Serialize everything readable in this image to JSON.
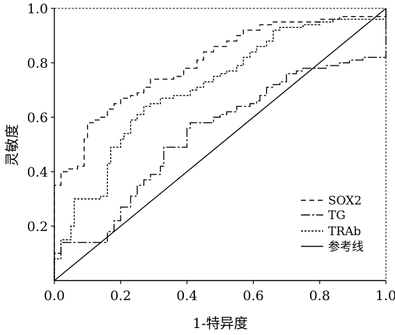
{
  "chart_data": {
    "type": "line",
    "title": "",
    "xlabel": "1-特异度",
    "ylabel": "灵敏度",
    "xlim": [
      0,
      1
    ],
    "ylim": [
      0,
      1
    ],
    "x_ticks": [
      "0.0",
      "0.2",
      "0.4",
      "0.6",
      "0.8",
      "1.0"
    ],
    "y_ticks": [
      "0.2",
      "0.4",
      "0.6",
      "0.8",
      "1.0"
    ],
    "grid": false,
    "legend_position": "bottom-right",
    "series": [
      {
        "name": "SOX2",
        "dash": "long-dash",
        "points": [
          [
            0,
            0
          ],
          [
            0,
            0.35
          ],
          [
            0.02,
            0.35
          ],
          [
            0.02,
            0.4
          ],
          [
            0.04,
            0.4
          ],
          [
            0.04,
            0.41
          ],
          [
            0.07,
            0.41
          ],
          [
            0.07,
            0.42
          ],
          [
            0.09,
            0.42
          ],
          [
            0.09,
            0.52
          ],
          [
            0.1,
            0.52
          ],
          [
            0.1,
            0.58
          ],
          [
            0.12,
            0.58
          ],
          [
            0.12,
            0.59
          ],
          [
            0.14,
            0.59
          ],
          [
            0.14,
            0.6
          ],
          [
            0.16,
            0.6
          ],
          [
            0.16,
            0.63
          ],
          [
            0.18,
            0.63
          ],
          [
            0.18,
            0.65
          ],
          [
            0.2,
            0.65
          ],
          [
            0.2,
            0.67
          ],
          [
            0.23,
            0.67
          ],
          [
            0.23,
            0.68
          ],
          [
            0.25,
            0.68
          ],
          [
            0.25,
            0.69
          ],
          [
            0.27,
            0.69
          ],
          [
            0.27,
            0.71
          ],
          [
            0.29,
            0.71
          ],
          [
            0.29,
            0.74
          ],
          [
            0.36,
            0.74
          ],
          [
            0.36,
            0.75
          ],
          [
            0.39,
            0.75
          ],
          [
            0.39,
            0.78
          ],
          [
            0.43,
            0.78
          ],
          [
            0.43,
            0.81
          ],
          [
            0.45,
            0.81
          ],
          [
            0.45,
            0.84
          ],
          [
            0.48,
            0.84
          ],
          [
            0.48,
            0.86
          ],
          [
            0.52,
            0.86
          ],
          [
            0.52,
            0.88
          ],
          [
            0.55,
            0.88
          ],
          [
            0.55,
            0.9
          ],
          [
            0.57,
            0.9
          ],
          [
            0.57,
            0.92
          ],
          [
            0.62,
            0.92
          ],
          [
            0.62,
            0.94
          ],
          [
            0.66,
            0.94
          ],
          [
            0.66,
            0.95
          ],
          [
            0.8,
            0.95
          ],
          [
            0.8,
            0.96
          ],
          [
            0.86,
            0.96
          ],
          [
            0.86,
            0.97
          ],
          [
            1,
            0.97
          ],
          [
            1,
            1
          ]
        ]
      },
      {
        "name": "TG",
        "dash": "dash-dot",
        "points": [
          [
            0,
            0
          ],
          [
            0,
            0.1
          ],
          [
            0.02,
            0.1
          ],
          [
            0.02,
            0.14
          ],
          [
            0.16,
            0.14
          ],
          [
            0.16,
            0.18
          ],
          [
            0.18,
            0.18
          ],
          [
            0.18,
            0.22
          ],
          [
            0.2,
            0.22
          ],
          [
            0.2,
            0.27
          ],
          [
            0.23,
            0.27
          ],
          [
            0.23,
            0.31
          ],
          [
            0.25,
            0.31
          ],
          [
            0.25,
            0.35
          ],
          [
            0.27,
            0.35
          ],
          [
            0.27,
            0.37
          ],
          [
            0.29,
            0.37
          ],
          [
            0.29,
            0.39
          ],
          [
            0.32,
            0.39
          ],
          [
            0.32,
            0.42
          ],
          [
            0.33,
            0.42
          ],
          [
            0.33,
            0.49
          ],
          [
            0.4,
            0.49
          ],
          [
            0.4,
            0.56
          ],
          [
            0.41,
            0.56
          ],
          [
            0.41,
            0.58
          ],
          [
            0.48,
            0.58
          ],
          [
            0.48,
            0.6
          ],
          [
            0.5,
            0.6
          ],
          [
            0.5,
            0.61
          ],
          [
            0.52,
            0.61
          ],
          [
            0.52,
            0.62
          ],
          [
            0.55,
            0.62
          ],
          [
            0.55,
            0.64
          ],
          [
            0.59,
            0.64
          ],
          [
            0.59,
            0.65
          ],
          [
            0.61,
            0.65
          ],
          [
            0.61,
            0.66
          ],
          [
            0.62,
            0.66
          ],
          [
            0.62,
            0.68
          ],
          [
            0.64,
            0.68
          ],
          [
            0.64,
            0.71
          ],
          [
            0.66,
            0.71
          ],
          [
            0.66,
            0.72
          ],
          [
            0.68,
            0.72
          ],
          [
            0.68,
            0.73
          ],
          [
            0.7,
            0.73
          ],
          [
            0.7,
            0.76
          ],
          [
            0.73,
            0.76
          ],
          [
            0.73,
            0.77
          ],
          [
            0.75,
            0.77
          ],
          [
            0.75,
            0.78
          ],
          [
            0.82,
            0.78
          ],
          [
            0.82,
            0.79
          ],
          [
            0.86,
            0.79
          ],
          [
            0.86,
            0.8
          ],
          [
            0.89,
            0.8
          ],
          [
            0.89,
            0.81
          ],
          [
            0.93,
            0.81
          ],
          [
            0.93,
            0.82
          ],
          [
            1,
            0.82
          ],
          [
            1,
            1
          ]
        ]
      },
      {
        "name": "TRAb",
        "dash": "dotted",
        "points": [
          [
            0,
            0
          ],
          [
            0,
            0.08
          ],
          [
            0.02,
            0.08
          ],
          [
            0.02,
            0.15
          ],
          [
            0.05,
            0.15
          ],
          [
            0.05,
            0.2
          ],
          [
            0.06,
            0.2
          ],
          [
            0.06,
            0.3
          ],
          [
            0.14,
            0.3
          ],
          [
            0.14,
            0.31
          ],
          [
            0.16,
            0.31
          ],
          [
            0.16,
            0.43
          ],
          [
            0.17,
            0.43
          ],
          [
            0.17,
            0.49
          ],
          [
            0.2,
            0.49
          ],
          [
            0.2,
            0.52
          ],
          [
            0.21,
            0.52
          ],
          [
            0.21,
            0.54
          ],
          [
            0.23,
            0.54
          ],
          [
            0.23,
            0.59
          ],
          [
            0.25,
            0.59
          ],
          [
            0.25,
            0.61
          ],
          [
            0.27,
            0.61
          ],
          [
            0.27,
            0.64
          ],
          [
            0.29,
            0.64
          ],
          [
            0.29,
            0.65
          ],
          [
            0.32,
            0.65
          ],
          [
            0.32,
            0.67
          ],
          [
            0.36,
            0.67
          ],
          [
            0.36,
            0.68
          ],
          [
            0.41,
            0.68
          ],
          [
            0.41,
            0.7
          ],
          [
            0.43,
            0.7
          ],
          [
            0.43,
            0.71
          ],
          [
            0.45,
            0.71
          ],
          [
            0.45,
            0.73
          ],
          [
            0.48,
            0.73
          ],
          [
            0.48,
            0.75
          ],
          [
            0.5,
            0.75
          ],
          [
            0.5,
            0.76
          ],
          [
            0.52,
            0.76
          ],
          [
            0.52,
            0.77
          ],
          [
            0.55,
            0.77
          ],
          [
            0.55,
            0.79
          ],
          [
            0.57,
            0.79
          ],
          [
            0.57,
            0.82
          ],
          [
            0.59,
            0.82
          ],
          [
            0.59,
            0.84
          ],
          [
            0.61,
            0.84
          ],
          [
            0.61,
            0.86
          ],
          [
            0.64,
            0.86
          ],
          [
            0.64,
            0.88
          ],
          [
            0.66,
            0.88
          ],
          [
            0.66,
            0.92
          ],
          [
            0.68,
            0.92
          ],
          [
            0.68,
            0.93
          ],
          [
            0.75,
            0.93
          ],
          [
            0.75,
            0.94
          ],
          [
            0.8,
            0.94
          ],
          [
            0.8,
            0.95
          ],
          [
            0.84,
            0.95
          ],
          [
            0.84,
            0.96
          ],
          [
            1,
            0.96
          ],
          [
            1,
            1
          ]
        ]
      },
      {
        "name": "参考线",
        "dash": "solid",
        "points": [
          [
            0,
            0
          ],
          [
            1,
            1
          ]
        ]
      }
    ]
  }
}
